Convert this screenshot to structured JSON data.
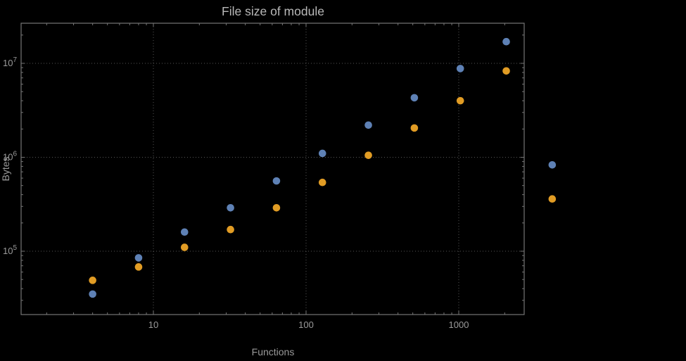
{
  "chart_data": {
    "type": "scatter",
    "title": "File size of module",
    "xlabel": "Functions",
    "ylabel": "Bytes",
    "x_scale": "log",
    "y_scale": "log",
    "grid": true,
    "legend": "none",
    "x_ticks": [
      10,
      100,
      1000
    ],
    "x_tick_labels": [
      "10",
      "100",
      "1000"
    ],
    "y_ticks": [
      100000,
      1000000,
      10000000
    ],
    "y_tick_exponents": [
      5,
      6,
      7
    ],
    "x": [
      4,
      8,
      16,
      32,
      64,
      128,
      256,
      512,
      1024,
      2048,
      4096
    ],
    "series": [
      {
        "name": "series-1-blue",
        "color": "#5e81b5",
        "values": [
          35000,
          85000,
          160000,
          290000,
          560000,
          1100000,
          2200000,
          4300000,
          8800000,
          17000000,
          830000
        ]
      },
      {
        "name": "series-2-orange",
        "color": "#e19c24",
        "values": [
          49000,
          68000,
          110000,
          170000,
          290000,
          540000,
          1050000,
          2050000,
          4000000,
          8300000,
          360000
        ]
      }
    ],
    "colors": {
      "background": "#000000",
      "text": "#9a9a9a",
      "title": "#b9b9b9",
      "frame": "#767676",
      "grid": "#565656"
    }
  }
}
